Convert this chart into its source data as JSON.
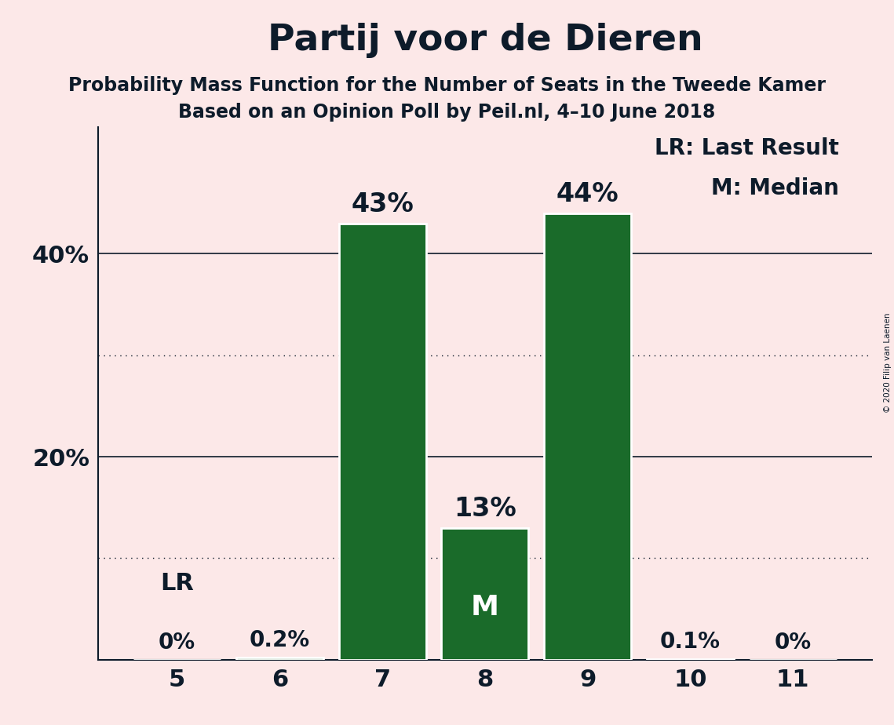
{
  "title": "Partij voor de Dieren",
  "subtitle1": "Probability Mass Function for the Number of Seats in the Tweede Kamer",
  "subtitle2": "Based on an Opinion Poll by Peil.nl, 4–10 June 2018",
  "copyright": "© 2020 Filip van Laenen",
  "categories": [
    5,
    6,
    7,
    8,
    9,
    10,
    11
  ],
  "values": [
    0.0,
    0.002,
    0.43,
    0.13,
    0.44,
    0.001,
    0.0
  ],
  "labels": [
    "0%",
    "0.2%",
    "43%",
    "13%",
    "44%",
    "0.1%",
    "0%"
  ],
  "bar_color": "#1a6b2a",
  "background_color": "#fce8e8",
  "text_color": "#0d1b2a",
  "ylim": [
    0,
    0.525
  ],
  "dotted_lines": [
    0.1,
    0.3
  ],
  "solid_lines": [
    0.2,
    0.4
  ],
  "LR_bar": 5,
  "Median_bar": 8,
  "legend_text1": "LR: Last Result",
  "legend_text2": "M: Median",
  "title_fontsize": 34,
  "subtitle_fontsize": 17,
  "label_fontsize": 22,
  "tick_fontsize": 22,
  "bar_width": 0.85
}
